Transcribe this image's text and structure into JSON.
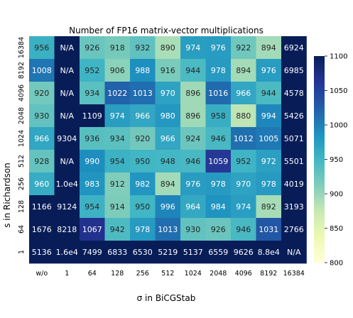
{
  "chart_data": {
    "type": "heatmap",
    "title": "Number of FP16 matrix-vector multiplications",
    "xlabel": "σ in BiCGStab",
    "ylabel": "s in Richardson",
    "x_categories": [
      "w/o",
      "1",
      "64",
      "128",
      "256",
      "512",
      "1024",
      "2048",
      "4096",
      "8192",
      "16384"
    ],
    "y_categories": [
      "16384",
      "8192",
      "4096",
      "2048",
      "1024",
      "512",
      "256",
      "128",
      "64",
      "1"
    ],
    "cells": [
      [
        "956",
        "N/A",
        "926",
        "918",
        "932",
        "890",
        "974",
        "976",
        "922",
        "894",
        "6924"
      ],
      [
        "1008",
        "N/A",
        "952",
        "906",
        "988",
        "916",
        "944",
        "978",
        "894",
        "976",
        "6985"
      ],
      [
        "920",
        "N/A",
        "934",
        "1022",
        "1013",
        "970",
        "896",
        "1016",
        "966",
        "944",
        "4578"
      ],
      [
        "930",
        "N/A",
        "1109",
        "974",
        "966",
        "980",
        "896",
        "958",
        "880",
        "994",
        "5426"
      ],
      [
        "966",
        "9304",
        "936",
        "934",
        "920",
        "966",
        "924",
        "946",
        "1012",
        "1005",
        "5071"
      ],
      [
        "928",
        "N/A",
        "990",
        "954",
        "950",
        "948",
        "946",
        "1059",
        "952",
        "972",
        "5501"
      ],
      [
        "960",
        "1.0e4",
        "983",
        "912",
        "982",
        "894",
        "976",
        "978",
        "970",
        "978",
        "4019"
      ],
      [
        "1166",
        "9124",
        "954",
        "914",
        "950",
        "996",
        "964",
        "984",
        "974",
        "892",
        "3193"
      ],
      [
        "1676",
        "8218",
        "1067",
        "942",
        "978",
        "1013",
        "930",
        "926",
        "946",
        "1031",
        "2766"
      ],
      [
        "5136",
        "1.6e4",
        "7499",
        "6833",
        "6530",
        "5219",
        "5137",
        "6559",
        "9626",
        "8.8e4",
        "N/A"
      ]
    ],
    "colorbar": {
      "range": [
        800,
        1100
      ],
      "ticks": [
        "800",
        "850",
        "900",
        "950",
        "1000",
        "1050",
        "1100"
      ],
      "colormap": "YlGnBu",
      "na_color": "#081d58"
    },
    "grid": false,
    "legend": "none"
  }
}
